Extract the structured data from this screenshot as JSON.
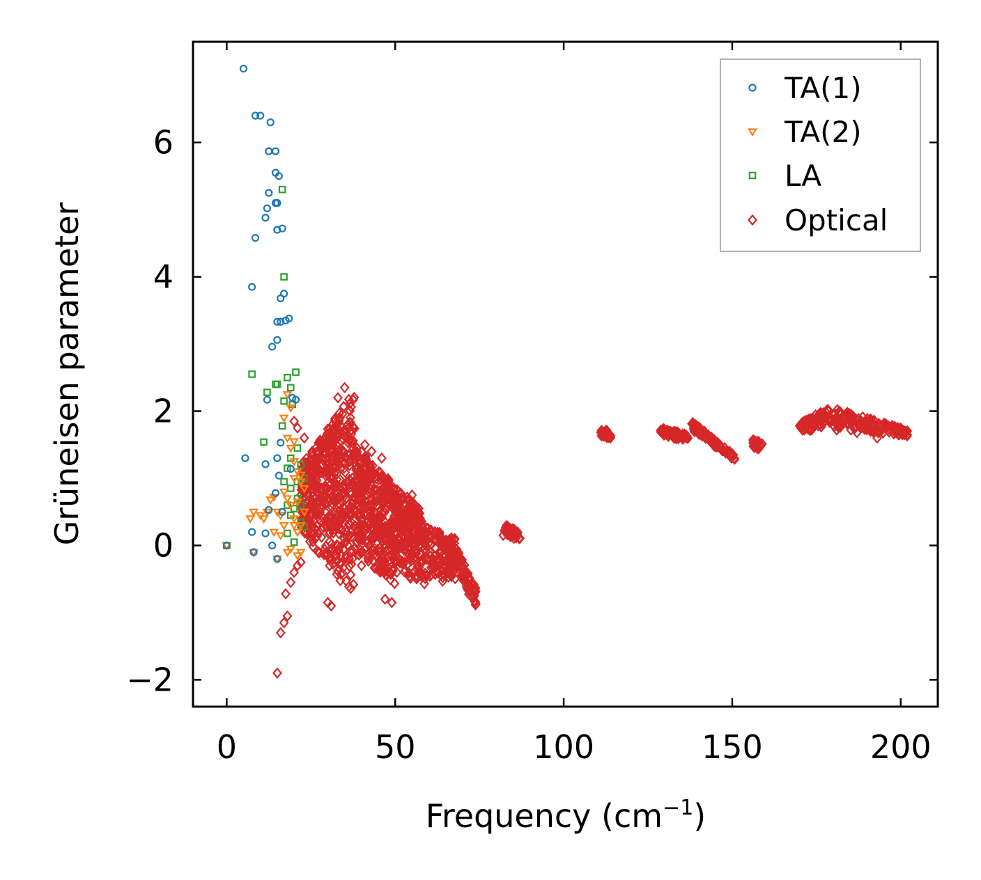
{
  "chart_data": {
    "type": "scatter",
    "title": "",
    "xlabel": "Frequency (cm",
    "xlabel_sup": "−1",
    "xlabel_suffix": ")",
    "ylabel": "Grüneisen parameter",
    "xlim": [
      -10,
      211
    ],
    "ylim": [
      -2.4,
      7.5
    ],
    "xticks": [
      0,
      50,
      100,
      150,
      200
    ],
    "xtick_labels": [
      "0",
      "50",
      "100",
      "150",
      "200"
    ],
    "yticks": [
      -2,
      0,
      2,
      4,
      6
    ],
    "ytick_labels": [
      "−2",
      "0",
      "2",
      "4",
      "6"
    ],
    "legend_position": "top-right",
    "colors": {
      "ta1": "#1f77b4",
      "ta2": "#ff7f0e",
      "la": "#2ca02c",
      "optical": "#d62728"
    },
    "series": [
      {
        "name": "TA(1)",
        "key": "ta1",
        "marker": "circle",
        "points": [
          [
            0,
            0
          ],
          [
            5,
            7.1
          ],
          [
            8.5,
            6.4
          ],
          [
            10,
            6.4
          ],
          [
            13,
            6.3
          ],
          [
            12.5,
            5.87
          ],
          [
            14.5,
            5.87
          ],
          [
            14.5,
            5.55
          ],
          [
            15.5,
            5.5
          ],
          [
            12.5,
            5.25
          ],
          [
            14.5,
            5.1
          ],
          [
            15,
            5.1
          ],
          [
            12,
            5.02
          ],
          [
            11.5,
            4.88
          ],
          [
            15,
            4.7
          ],
          [
            16.5,
            4.72
          ],
          [
            8.5,
            4.58
          ],
          [
            7.5,
            3.85
          ],
          [
            17,
            3.75
          ],
          [
            16,
            3.68
          ],
          [
            18.5,
            3.38
          ],
          [
            17.5,
            3.35
          ],
          [
            15,
            3.33
          ],
          [
            16,
            3.33
          ],
          [
            15,
            3.06
          ],
          [
            13.5,
            2.96
          ],
          [
            12,
            2.17
          ],
          [
            19.5,
            2.2
          ],
          [
            20.5,
            2.17
          ],
          [
            16,
            1.53
          ],
          [
            5.5,
            1.3
          ],
          [
            15,
            1.3
          ],
          [
            11.5,
            1.21
          ],
          [
            19,
            1.14
          ],
          [
            15.5,
            1.04
          ],
          [
            14.5,
            0.78
          ],
          [
            12.5,
            0.53
          ],
          [
            16.5,
            0.5
          ],
          [
            7.5,
            0.2
          ],
          [
            11.5,
            0.18
          ],
          [
            13.5,
            0.0
          ],
          [
            15,
            -0.2
          ],
          [
            8,
            -0.1
          ]
        ]
      },
      {
        "name": "TA(2)",
        "key": "ta2",
        "marker": "triangle-down",
        "points": [
          [
            0,
            0
          ],
          [
            7,
            0.4
          ],
          [
            8,
            0.5
          ],
          [
            10,
            0.45
          ],
          [
            11,
            0.4
          ],
          [
            12,
            0.5
          ],
          [
            13,
            0.68
          ],
          [
            14,
            0.72
          ],
          [
            15,
            0.5
          ],
          [
            16,
            0.45
          ],
          [
            17,
            0.8
          ],
          [
            18,
            0.7
          ],
          [
            19,
            0.6
          ],
          [
            20,
            0.3
          ],
          [
            21,
            0.2
          ],
          [
            22,
            0.95
          ],
          [
            21,
            1.1
          ],
          [
            20,
            1.25
          ],
          [
            19,
            1.45
          ],
          [
            20,
            1.55
          ],
          [
            18,
            1.6
          ],
          [
            17,
            1.9
          ],
          [
            18,
            2.25
          ],
          [
            19,
            2.05
          ],
          [
            20,
            1.0
          ],
          [
            22,
            1.05
          ],
          [
            23,
            0.85
          ],
          [
            21,
            0.65
          ],
          [
            18,
            -0.1
          ],
          [
            19,
            -0.05
          ],
          [
            21,
            -0.15
          ],
          [
            22,
            -0.1
          ],
          [
            15,
            -0.2
          ],
          [
            8,
            -0.1
          ],
          [
            17,
            0.3
          ],
          [
            16,
            0.15
          ],
          [
            23,
            0.5
          ],
          [
            20,
            0.4
          ],
          [
            14,
            0.2
          ],
          [
            22,
            0.3
          ]
        ]
      },
      {
        "name": "LA",
        "key": "la",
        "marker": "square",
        "points": [
          [
            0,
            0
          ],
          [
            16.5,
            5.3
          ],
          [
            17,
            4.0
          ],
          [
            7.5,
            2.55
          ],
          [
            20.5,
            2.58
          ],
          [
            14.5,
            2.4
          ],
          [
            15,
            2.4
          ],
          [
            12,
            2.28
          ],
          [
            19,
            2.35
          ],
          [
            18,
            2.5
          ],
          [
            17,
            2.15
          ],
          [
            19.5,
            2.1
          ],
          [
            11,
            1.54
          ],
          [
            16.5,
            1.78
          ],
          [
            21,
            1.45
          ],
          [
            22,
            1.2
          ],
          [
            18,
            1.15
          ],
          [
            23,
            1.0
          ],
          [
            19,
            0.85
          ],
          [
            21,
            0.7
          ],
          [
            20,
            0.55
          ],
          [
            22,
            0.35
          ],
          [
            23,
            0.28
          ],
          [
            18,
            0.18
          ],
          [
            19,
            0.45
          ],
          [
            20,
            0.05
          ],
          [
            22,
            0.6
          ],
          [
            21,
            0.95
          ],
          [
            19,
            1.3
          ],
          [
            17,
            0.95
          ],
          [
            18,
            0.6
          ]
        ]
      },
      {
        "name": "Optical",
        "key": "optical",
        "marker": "diamond",
        "clusters": [
          {
            "x": [
              22,
              38
            ],
            "top": [
              1.2,
              2.3
            ],
            "bottom": [
              0.2,
              -0.8
            ],
            "n": 520
          },
          {
            "x": [
              38,
              50
            ],
            "top": [
              1.5,
              0.9
            ],
            "bottom": [
              -0.1,
              -0.6
            ],
            "n": 380
          },
          {
            "x": [
              50,
              58
            ],
            "top": [
              0.9,
              0.5
            ],
            "bottom": [
              -0.4,
              -0.6
            ],
            "n": 230
          },
          {
            "x": [
              58,
              68
            ],
            "top": [
              0.3,
              0.1
            ],
            "bottom": [
              -0.6,
              -0.5
            ],
            "n": 150
          },
          {
            "x": [
              68,
              74
            ],
            "top": [
              0.0,
              -0.65
            ],
            "bottom": [
              -0.45,
              -0.9
            ],
            "n": 90
          },
          {
            "x": [
              82,
              87
            ],
            "top": [
              0.32,
              0.2
            ],
            "bottom": [
              0.12,
              0.08
            ],
            "n": 45
          },
          {
            "x": [
              111,
              114
            ],
            "top": [
              1.74,
              1.7
            ],
            "bottom": [
              1.62,
              1.6
            ],
            "n": 25
          },
          {
            "x": [
              128,
              137
            ],
            "top": [
              1.76,
              1.65
            ],
            "bottom": [
              1.64,
              1.55
            ],
            "n": 55
          },
          {
            "x": [
              138,
              151
            ],
            "top": [
              1.85,
              1.33
            ],
            "bottom": [
              1.72,
              1.25
            ],
            "n": 80
          },
          {
            "x": [
              156,
              159
            ],
            "top": [
              1.58,
              1.55
            ],
            "bottom": [
              1.42,
              1.45
            ],
            "n": 25
          },
          {
            "x": [
              170,
              179
            ],
            "top": [
              1.82,
              2.06
            ],
            "bottom": [
              1.68,
              1.75
            ],
            "n": 70
          },
          {
            "x": [
              179,
              202
            ],
            "top": [
              2.06,
              1.72
            ],
            "bottom": [
              1.75,
              1.62
            ],
            "n": 160
          }
        ],
        "points": [
          [
            15,
            -1.9
          ],
          [
            16,
            -1.3
          ],
          [
            17,
            -1.15
          ],
          [
            18,
            -1.05
          ],
          [
            17.5,
            -0.72
          ],
          [
            19,
            -0.55
          ],
          [
            20,
            -0.4
          ],
          [
            21,
            -0.3
          ],
          [
            22,
            -0.25
          ],
          [
            35,
            2.35
          ],
          [
            33,
            2.2
          ],
          [
            41,
            1.5
          ],
          [
            43,
            1.4
          ],
          [
            46,
            1.3
          ],
          [
            55,
            0.75
          ],
          [
            57,
            0.55
          ],
          [
            49,
            -0.85
          ],
          [
            47,
            -0.8
          ],
          [
            31,
            -0.9
          ],
          [
            30,
            -0.85
          ],
          [
            40,
            -0.3
          ],
          [
            20,
            1.85
          ],
          [
            21,
            1.75
          ],
          [
            23,
            1.6
          ],
          [
            24,
            0.4
          ],
          [
            181,
            1.72
          ],
          [
            193,
            1.6
          ],
          [
            187,
            1.68
          ]
        ]
      }
    ]
  }
}
